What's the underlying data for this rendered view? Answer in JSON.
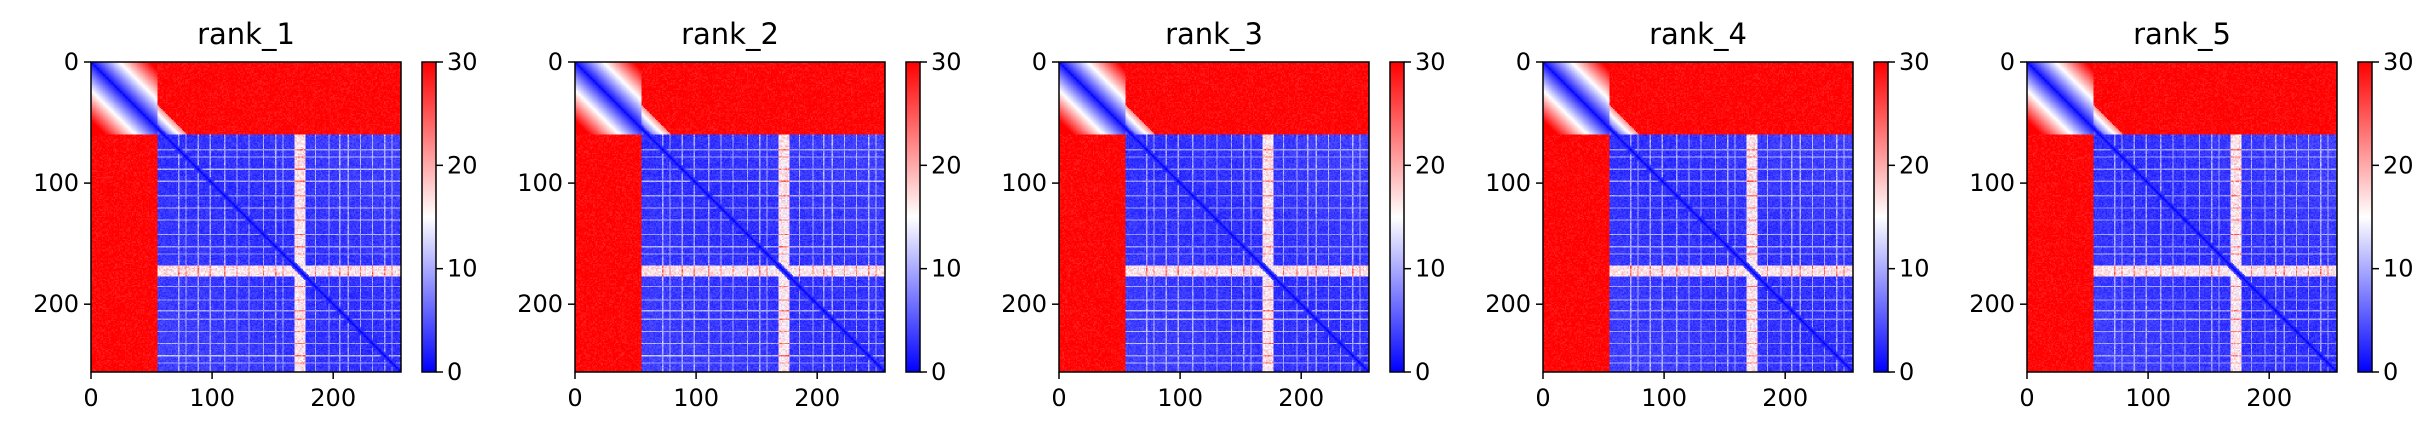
{
  "chart_data": {
    "type": "heatmap",
    "colormap": [
      "#0000ff",
      "#ffffff",
      "#ff0000"
    ],
    "vmin": 0,
    "vmax": 30,
    "n": 256,
    "xlim": [
      0,
      256
    ],
    "ylim": [
      256,
      0
    ],
    "x_ticks": [
      0,
      100,
      200
    ],
    "y_ticks": [
      0,
      100,
      200
    ],
    "colorbar_ticks": [
      0,
      10,
      20,
      30
    ],
    "grid": false,
    "panels": [
      {
        "title": "rank_1"
      },
      {
        "title": "rank_2"
      },
      {
        "title": "rank_3"
      },
      {
        "title": "rank_4"
      },
      {
        "title": "rank_5"
      }
    ]
  }
}
